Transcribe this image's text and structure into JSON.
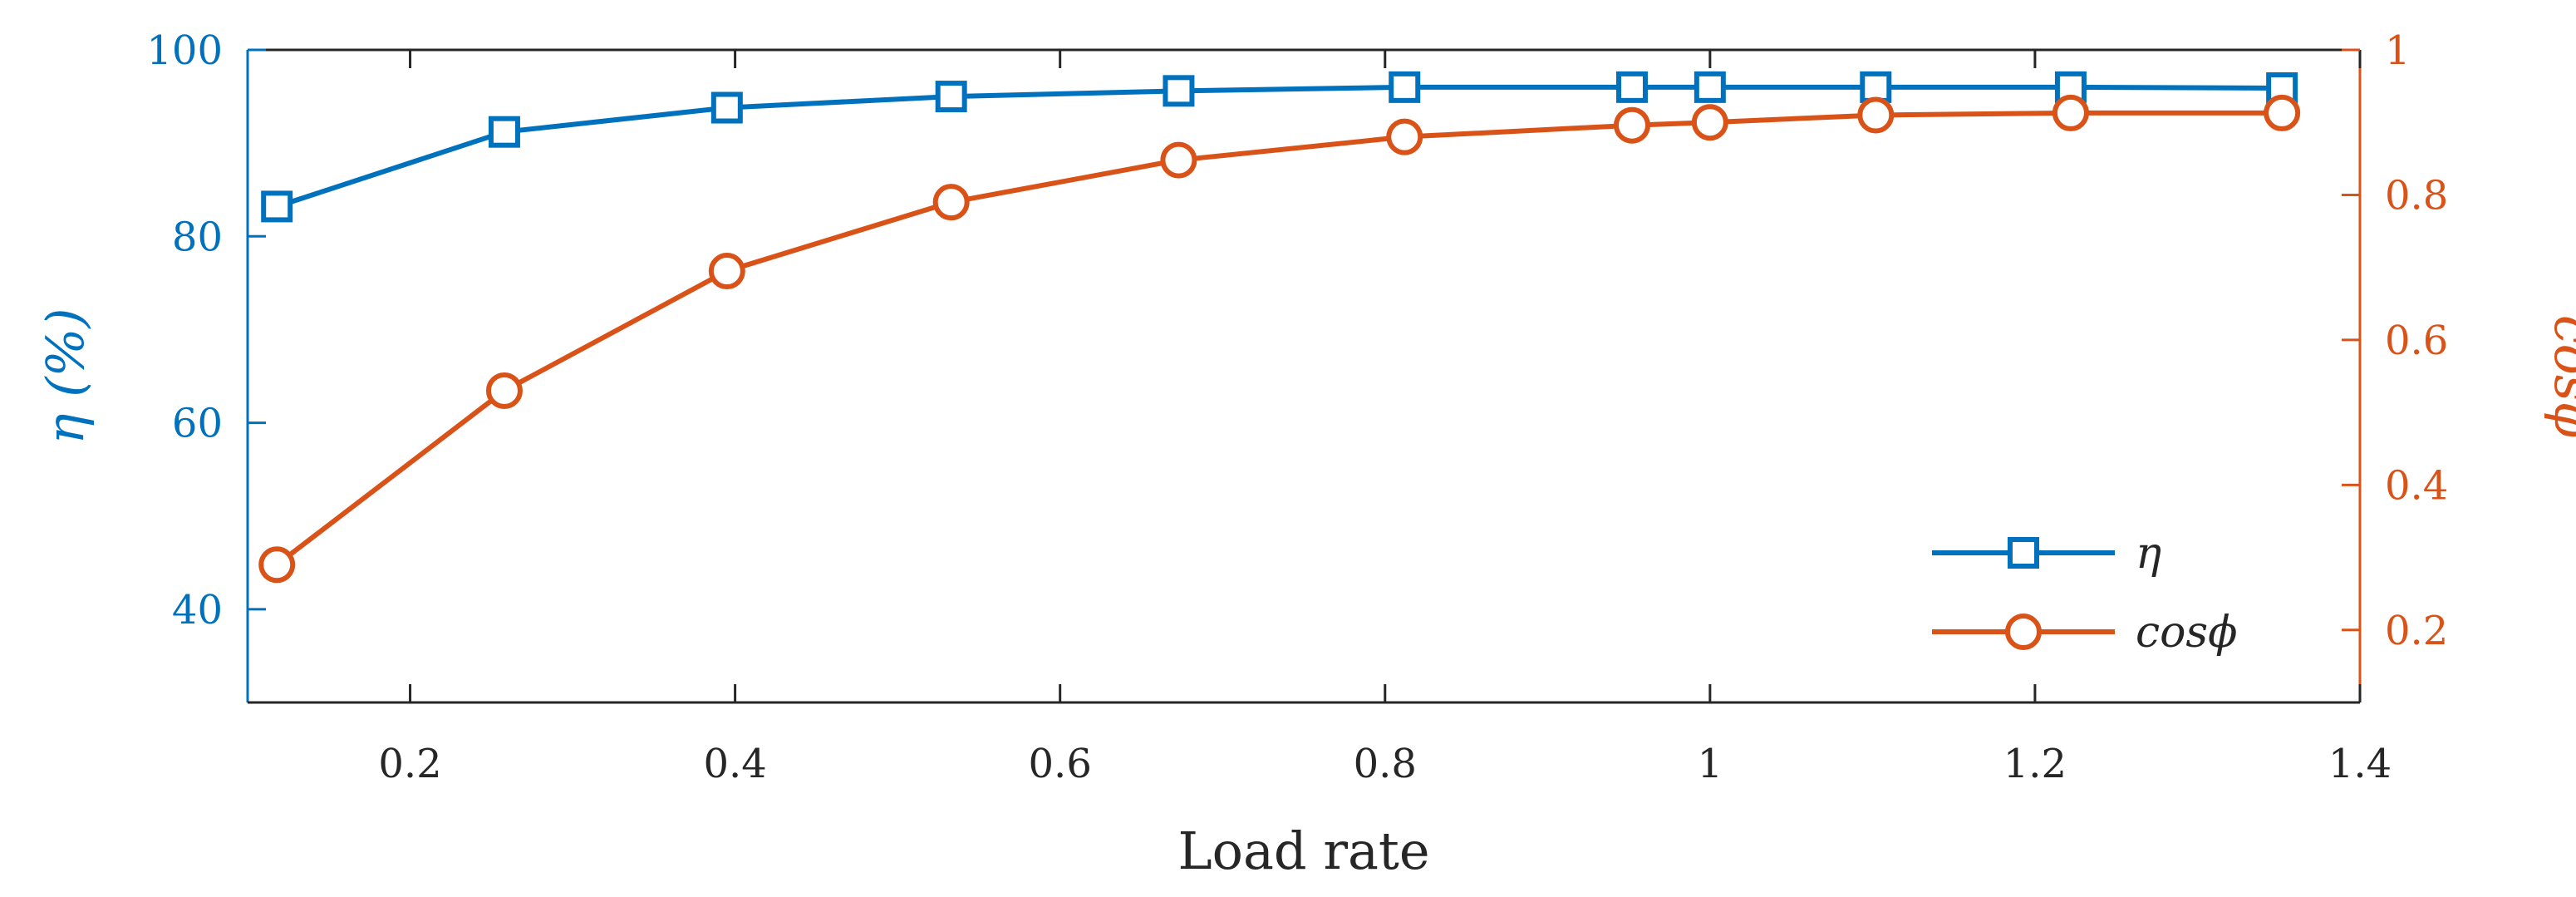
{
  "chart_data": {
    "type": "line",
    "xlabel": "Load rate",
    "ylabel_left": "η (%)",
    "ylabel_right": "cosφ",
    "xlim": [
      0.1,
      1.4
    ],
    "xticks": [
      0.2,
      0.4,
      0.6,
      0.8,
      1,
      1.2,
      1.4
    ],
    "xtick_labels": [
      "0.2",
      "0.4",
      "0.6",
      "0.8",
      "1",
      "1.2",
      "1.4"
    ],
    "ylim_left": [
      30,
      100
    ],
    "yticks_left": [
      40,
      60,
      80,
      100
    ],
    "ytick_labels_left": [
      "40",
      "60",
      "80",
      "100"
    ],
    "ylim_right": [
      0.1,
      1
    ],
    "yticks_right": [
      0.2,
      0.4,
      0.6,
      0.8,
      1
    ],
    "ytick_labels_right": [
      "0.2",
      "0.4",
      "0.6",
      "0.8",
      "1"
    ],
    "grid": false,
    "legend_position": "bottom-right",
    "series": [
      {
        "name": "η",
        "axis": "left",
        "marker": "square",
        "color": "#0072BD",
        "x": [
          0.118,
          0.258,
          0.395,
          0.533,
          0.673,
          0.812,
          0.952,
          1.0,
          1.102,
          1.222,
          1.352
        ],
        "y": [
          83.2,
          91.2,
          93.8,
          95.0,
          95.6,
          96.0,
          96.0,
          96.0,
          96.0,
          96.0,
          95.9
        ]
      },
      {
        "name": "cosϕ",
        "axis": "right",
        "marker": "circle",
        "color": "#D95319",
        "x": [
          0.118,
          0.258,
          0.395,
          0.533,
          0.673,
          0.812,
          0.952,
          1.0,
          1.102,
          1.222,
          1.352
        ],
        "y": [
          0.29,
          0.53,
          0.695,
          0.79,
          0.848,
          0.88,
          0.896,
          0.9,
          0.91,
          0.913,
          0.913
        ]
      }
    ],
    "legend": [
      "η",
      "cosϕ"
    ]
  }
}
